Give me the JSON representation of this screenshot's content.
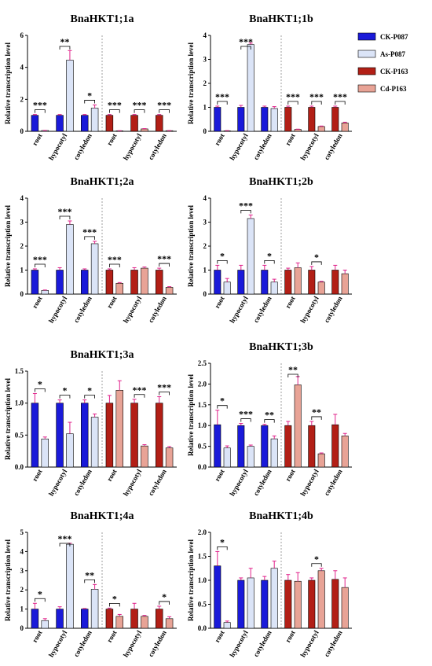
{
  "legend": [
    {
      "label": "CK-P087",
      "color": "#1a1ad9"
    },
    {
      "label": "As-P087",
      "color": "#dbe4f7"
    },
    {
      "label": "CK-P163",
      "color": "#b21f16"
    },
    {
      "label": "Cd-P163",
      "color": "#e8a396"
    }
  ],
  "colors": {
    "ck_p087": "#1a1ad9",
    "as_p087": "#dbe4f7",
    "ck_p163": "#b21f16",
    "cd_p163": "#e8a396",
    "error_bar": "#e0218a",
    "divider": "#888888"
  },
  "chart_data": [
    {
      "type": "bar",
      "title": "BnaHKT1;1a",
      "ylabel": "Relative transcription level",
      "ylim": [
        0,
        6
      ],
      "yticks": [
        "0",
        "2",
        "4",
        "6"
      ],
      "categories": [
        "root",
        "hypocotyl",
        "cotyledon",
        "root",
        "hypocotyl",
        "cotyledon"
      ],
      "groups": [
        {
          "category": "root",
          "control": 1.0,
          "control_err": 0.05,
          "treated": 0.05,
          "treated_err": 0.01,
          "sig": "***",
          "pair": "P087"
        },
        {
          "category": "hypocotyl",
          "control": 1.0,
          "control_err": 0.05,
          "treated": 4.45,
          "treated_err": 0.6,
          "sig": "**",
          "pair": "P087"
        },
        {
          "category": "cotyledon",
          "control": 1.0,
          "control_err": 0.05,
          "treated": 1.45,
          "treated_err": 0.2,
          "sig": "*",
          "pair": "P087"
        },
        {
          "category": "root",
          "control": 1.0,
          "control_err": 0.05,
          "treated": 0.03,
          "treated_err": 0.01,
          "sig": "***",
          "pair": "P163"
        },
        {
          "category": "hypocotyl",
          "control": 1.0,
          "control_err": 0.05,
          "treated": 0.15,
          "treated_err": 0.02,
          "sig": "***",
          "pair": "P163"
        },
        {
          "category": "cotyledon",
          "control": 1.0,
          "control_err": 0.05,
          "treated": 0.04,
          "treated_err": 0.01,
          "sig": "***",
          "pair": "P163"
        }
      ]
    },
    {
      "type": "bar",
      "title": "BnaHKT1;1b",
      "ylabel": "Relative transcription level",
      "ylim": [
        0,
        4
      ],
      "yticks": [
        "0",
        "1",
        "2",
        "3",
        "4"
      ],
      "categories": [
        "root",
        "hypocotyl",
        "cotyledon",
        "root",
        "hypocotyl",
        "cotyledon"
      ],
      "groups": [
        {
          "category": "root",
          "control": 1.0,
          "control_err": 0.05,
          "treated": 0.02,
          "treated_err": 0.01,
          "sig": "***",
          "pair": "P087"
        },
        {
          "category": "hypocotyl",
          "control": 1.0,
          "control_err": 0.08,
          "treated": 3.62,
          "treated_err": 0.06,
          "sig": "***",
          "pair": "P087"
        },
        {
          "category": "cotyledon",
          "control": 1.0,
          "control_err": 0.05,
          "treated": 0.95,
          "treated_err": 0.08,
          "sig": "",
          "pair": "P087"
        },
        {
          "category": "root",
          "control": 1.0,
          "control_err": 0.05,
          "treated": 0.08,
          "treated_err": 0.01,
          "sig": "***",
          "pair": "P163"
        },
        {
          "category": "hypocotyl",
          "control": 1.0,
          "control_err": 0.05,
          "treated": 0.2,
          "treated_err": 0.02,
          "sig": "***",
          "pair": "P163"
        },
        {
          "category": "cotyledon",
          "control": 1.0,
          "control_err": 0.05,
          "treated": 0.35,
          "treated_err": 0.03,
          "sig": "***",
          "pair": "P163"
        }
      ]
    },
    {
      "type": "bar",
      "title": "BnaHKT1;2a",
      "ylabel": "Relative transcription level",
      "ylim": [
        0,
        4
      ],
      "yticks": [
        "0",
        "1",
        "2",
        "3",
        "4"
      ],
      "categories": [
        "root",
        "hypocotyl",
        "cotyledon",
        "root",
        "hypocotyl",
        "cotyledon"
      ],
      "groups": [
        {
          "category": "root",
          "control": 1.0,
          "control_err": 0.05,
          "treated": 0.15,
          "treated_err": 0.02,
          "sig": "***",
          "pair": "P087"
        },
        {
          "category": "hypocotyl",
          "control": 1.0,
          "control_err": 0.1,
          "treated": 2.9,
          "treated_err": 0.15,
          "sig": "***",
          "pair": "P087"
        },
        {
          "category": "cotyledon",
          "control": 1.0,
          "control_err": 0.05,
          "treated": 2.1,
          "treated_err": 0.1,
          "sig": "***",
          "pair": "P087"
        },
        {
          "category": "root",
          "control": 1.0,
          "control_err": 0.05,
          "treated": 0.45,
          "treated_err": 0.03,
          "sig": "***",
          "pair": "P163"
        },
        {
          "category": "hypocotyl",
          "control": 1.0,
          "control_err": 0.1,
          "treated": 1.08,
          "treated_err": 0.05,
          "sig": "",
          "pair": "P163"
        },
        {
          "category": "cotyledon",
          "control": 1.0,
          "control_err": 0.08,
          "treated": 0.28,
          "treated_err": 0.03,
          "sig": "***",
          "pair": "P163"
        }
      ]
    },
    {
      "type": "bar",
      "title": "BnaHKT1;2b",
      "ylabel": "Relative transcription level",
      "ylim": [
        0,
        4
      ],
      "yticks": [
        "0",
        "1",
        "2",
        "3",
        "4"
      ],
      "categories": [
        "root",
        "hypocotyl",
        "cotyledon",
        "root",
        "hypocotyl",
        "cotyledon"
      ],
      "groups": [
        {
          "category": "root",
          "control": 1.0,
          "control_err": 0.2,
          "treated": 0.5,
          "treated_err": 0.15,
          "sig": "*",
          "pair": "P087"
        },
        {
          "category": "hypocotyl",
          "control": 1.0,
          "control_err": 0.2,
          "treated": 3.15,
          "treated_err": 0.15,
          "sig": "***",
          "pair": "P087"
        },
        {
          "category": "cotyledon",
          "control": 1.0,
          "control_err": 0.2,
          "treated": 0.5,
          "treated_err": 0.12,
          "sig": "*",
          "pair": "P087"
        },
        {
          "category": "root",
          "control": 1.0,
          "control_err": 0.08,
          "treated": 1.1,
          "treated_err": 0.2,
          "sig": "",
          "pair": "P163"
        },
        {
          "category": "hypocotyl",
          "control": 1.0,
          "control_err": 0.15,
          "treated": 0.5,
          "treated_err": 0.03,
          "sig": "*",
          "pair": "P163"
        },
        {
          "category": "cotyledon",
          "control": 1.0,
          "control_err": 0.2,
          "treated": 0.85,
          "treated_err": 0.15,
          "sig": "",
          "pair": "P163"
        }
      ]
    },
    {
      "type": "bar",
      "title": "BnaHKT1;3a",
      "ylabel": "Relative transcription level",
      "ylim": [
        0,
        1.5
      ],
      "yticks": [
        "0.0",
        "0.5",
        "1.0",
        "1.5"
      ],
      "categories": [
        "root",
        "hypocotyl",
        "cotyledon",
        "root",
        "hypocotyl",
        "cotyledon"
      ],
      "groups": [
        {
          "category": "root",
          "control": 1.0,
          "control_err": 0.15,
          "treated": 0.44,
          "treated_err": 0.03,
          "sig": "*",
          "pair": "P087"
        },
        {
          "category": "hypocotyl",
          "control": 1.0,
          "control_err": 0.05,
          "treated": 0.52,
          "treated_err": 0.18,
          "sig": "*",
          "pair": "P087"
        },
        {
          "category": "cotyledon",
          "control": 1.0,
          "control_err": 0.05,
          "treated": 0.78,
          "treated_err": 0.05,
          "sig": "*",
          "pair": "P087"
        },
        {
          "category": "root",
          "control": 1.0,
          "control_err": 0.12,
          "treated": 1.2,
          "treated_err": 0.15,
          "sig": "",
          "pair": "P163"
        },
        {
          "category": "hypocotyl",
          "control": 1.0,
          "control_err": 0.06,
          "treated": 0.33,
          "treated_err": 0.02,
          "sig": "***",
          "pair": "P163"
        },
        {
          "category": "cotyledon",
          "control": 1.0,
          "control_err": 0.1,
          "treated": 0.3,
          "treated_err": 0.02,
          "sig": "***",
          "pair": "P163"
        }
      ]
    },
    {
      "type": "bar",
      "title": "BnaHKT1;3b",
      "ylabel": "Relative transcription level",
      "ylim": [
        0,
        2.5
      ],
      "yticks": [
        "0.0",
        "0.5",
        "1.0",
        "1.5",
        "2.0",
        "2.5"
      ],
      "categories": [
        "root",
        "hypocotyl",
        "cotyledon",
        "root",
        "hypocotyl",
        "cotyledon"
      ],
      "groups": [
        {
          "category": "root",
          "control": 1.02,
          "control_err": 0.35,
          "treated": 0.46,
          "treated_err": 0.05,
          "sig": "*",
          "pair": "P087"
        },
        {
          "category": "hypocotyl",
          "control": 1.0,
          "control_err": 0.05,
          "treated": 0.5,
          "treated_err": 0.03,
          "sig": "***",
          "pair": "P087"
        },
        {
          "category": "cotyledon",
          "control": 1.0,
          "control_err": 0.03,
          "treated": 0.68,
          "treated_err": 0.07,
          "sig": "**",
          "pair": "P087"
        },
        {
          "category": "root",
          "control": 1.0,
          "control_err": 0.1,
          "treated": 1.98,
          "treated_err": 0.2,
          "sig": "**",
          "pair": "P163"
        },
        {
          "category": "hypocotyl",
          "control": 1.0,
          "control_err": 0.1,
          "treated": 0.32,
          "treated_err": 0.02,
          "sig": "**",
          "pair": "P163"
        },
        {
          "category": "cotyledon",
          "control": 1.02,
          "control_err": 0.25,
          "treated": 0.75,
          "treated_err": 0.06,
          "sig": "",
          "pair": "P163"
        }
      ]
    },
    {
      "type": "bar",
      "title": "BnaHKT1;4a",
      "ylabel": "Relative transcription level",
      "ylim": [
        0,
        5
      ],
      "yticks": [
        "0",
        "1",
        "2",
        "3",
        "4",
        "5"
      ],
      "categories": [
        "root",
        "hypocotyl",
        "cotyledon",
        "root",
        "hypocotyl",
        "cotyledon"
      ],
      "groups": [
        {
          "category": "root",
          "control": 1.0,
          "control_err": 0.3,
          "treated": 0.4,
          "treated_err": 0.1,
          "sig": "*",
          "pair": "P087"
        },
        {
          "category": "hypocotyl",
          "control": 1.0,
          "control_err": 0.12,
          "treated": 4.38,
          "treated_err": 0.05,
          "sig": "***",
          "pair": "P087"
        },
        {
          "category": "cotyledon",
          "control": 1.0,
          "control_err": 0.03,
          "treated": 2.03,
          "treated_err": 0.25,
          "sig": "**",
          "pair": "P087"
        },
        {
          "category": "root",
          "control": 1.0,
          "control_err": 0.05,
          "treated": 0.62,
          "treated_err": 0.1,
          "sig": "*",
          "pair": "P163"
        },
        {
          "category": "hypocotyl",
          "control": 1.0,
          "control_err": 0.3,
          "treated": 0.62,
          "treated_err": 0.05,
          "sig": "",
          "pair": "P163"
        },
        {
          "category": "cotyledon",
          "control": 1.0,
          "control_err": 0.15,
          "treated": 0.5,
          "treated_err": 0.1,
          "sig": "*",
          "pair": "P163"
        }
      ]
    },
    {
      "type": "bar",
      "title": "BnaHKT1;4b",
      "ylabel": "Relative transcription level",
      "ylim": [
        0,
        2.0
      ],
      "yticks": [
        "0.0",
        "0.5",
        "1.0",
        "1.5",
        "2.0"
      ],
      "categories": [
        "root",
        "hypocotyl",
        "cotyledon",
        "root",
        "hypocotyl",
        "cotyledon"
      ],
      "groups": [
        {
          "category": "root",
          "control": 1.3,
          "control_err": 0.3,
          "treated": 0.12,
          "treated_err": 0.03,
          "sig": "*",
          "pair": "P087"
        },
        {
          "category": "hypocotyl",
          "control": 1.0,
          "control_err": 0.05,
          "treated": 1.05,
          "treated_err": 0.2,
          "sig": "",
          "pair": "P087"
        },
        {
          "category": "cotyledon",
          "control": 1.0,
          "control_err": 0.08,
          "treated": 1.25,
          "treated_err": 0.15,
          "sig": "",
          "pair": "P087"
        },
        {
          "category": "root",
          "control": 1.0,
          "control_err": 0.12,
          "treated": 0.98,
          "treated_err": 0.18,
          "sig": "",
          "pair": "P163"
        },
        {
          "category": "hypocotyl",
          "control": 1.0,
          "control_err": 0.05,
          "treated": 1.2,
          "treated_err": 0.05,
          "sig": "*",
          "pair": "P163"
        },
        {
          "category": "cotyledon",
          "control": 1.02,
          "control_err": 0.18,
          "treated": 0.85,
          "treated_err": 0.2,
          "sig": "",
          "pair": "P163"
        }
      ]
    }
  ]
}
